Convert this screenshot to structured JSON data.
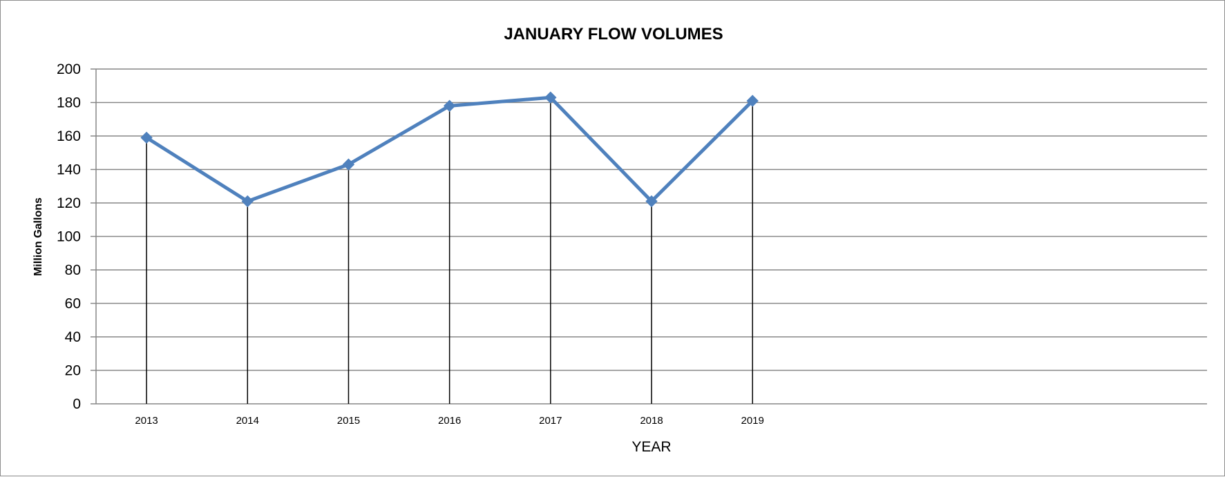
{
  "chart_data": {
    "type": "line",
    "title": "JANUARY FLOW VOLUMES",
    "xlabel": "YEAR",
    "ylabel": "Million Gallons",
    "ylim": [
      0,
      200
    ],
    "ytick_step": 20,
    "yticks": [
      "0",
      "20",
      "40",
      "60",
      "80",
      "100",
      "120",
      "140",
      "160",
      "180",
      "200"
    ],
    "category_slots": 11,
    "categories": [
      "2013",
      "2014",
      "2015",
      "2016",
      "2017",
      "2018",
      "2019"
    ],
    "series": [
      {
        "values": [
          159,
          121,
          143,
          178,
          183,
          121,
          181
        ],
        "color": "#4f81bd"
      }
    ],
    "drop_lines": true,
    "drop_line_color": "#000000",
    "grid": true,
    "grid_color": "#868686",
    "legend": "none"
  }
}
